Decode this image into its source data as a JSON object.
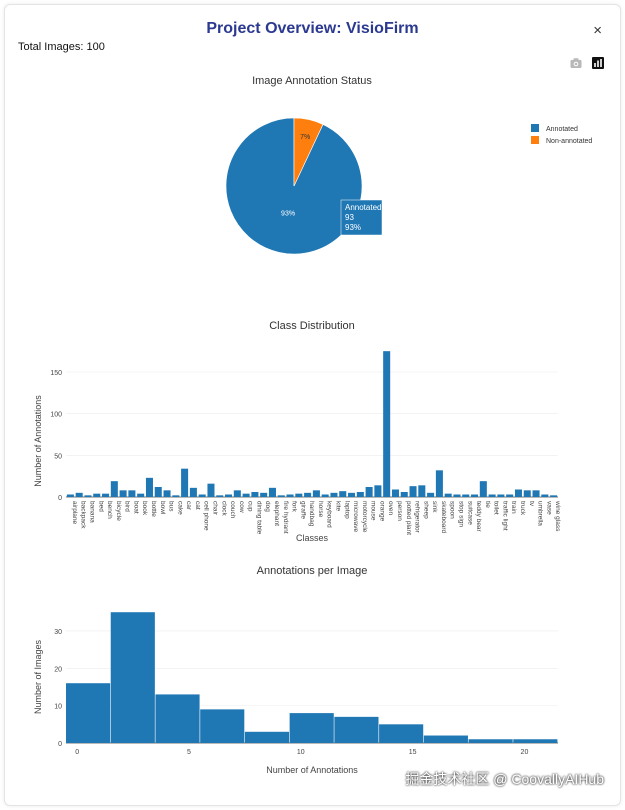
{
  "modal": {
    "title": "Project Overview: VisioFirm",
    "title_color": "#2b3990",
    "close_label": "×",
    "total_images": "Total Images: 100"
  },
  "toolbar": {
    "icons": [
      "camera-icon",
      "bar-chart-icon"
    ]
  },
  "watermark": "掘金技术社区 @ CoovallyAIHub",
  "chart_data": [
    {
      "type": "pie",
      "title": "Image Annotation Status",
      "labels": [
        "Annotated",
        "Non-annotated"
      ],
      "values": [
        93,
        7
      ],
      "percent_labels": [
        "93%",
        "7%"
      ],
      "colors": [
        "#1f77b4",
        "#ff7f0e"
      ],
      "legend_position": "top-right",
      "hover": {
        "label": "Annotated",
        "value": "93",
        "percent": "93%"
      }
    },
    {
      "type": "bar",
      "title": "Class Distribution",
      "xlabel": "Classes",
      "ylabel": "Number of Annotations",
      "ylim": [
        0,
        180
      ],
      "yticks": [
        0,
        50,
        100,
        150
      ],
      "color": "#1f77b4",
      "categories": [
        "airplane",
        "backpack",
        "banana",
        "bed",
        "bench",
        "bicycle",
        "bird",
        "boat",
        "book",
        "bottle",
        "bowl",
        "bus",
        "cake",
        "car",
        "cat",
        "cell phone",
        "chair",
        "clock",
        "couch",
        "cow",
        "cup",
        "dining table",
        "dog",
        "elephant",
        "fire hydrant",
        "fork",
        "giraffe",
        "handbag",
        "horse",
        "keyboard",
        "kite",
        "laptop",
        "microwave",
        "motorcycle",
        "mouse",
        "orange",
        "oven",
        "person",
        "potted plant",
        "refrigerator",
        "sheep",
        "sink",
        "skateboard",
        "spoon",
        "stop sign",
        "suitcase",
        "teddy bear",
        "tie",
        "toilet",
        "traffic light",
        "train",
        "truck",
        "tv",
        "umbrella",
        "vase",
        "wine glass"
      ],
      "values": [
        3,
        5,
        2,
        4,
        4,
        19,
        8,
        8,
        4,
        23,
        12,
        8,
        2,
        34,
        11,
        3,
        16,
        2,
        3,
        8,
        4,
        6,
        5,
        11,
        2,
        3,
        4,
        5,
        8,
        3,
        5,
        7,
        5,
        6,
        12,
        14,
        175,
        9,
        6,
        13,
        14,
        5,
        32,
        4,
        3,
        3,
        3,
        19,
        3,
        3,
        3,
        9,
        8,
        8,
        3,
        2
      ]
    },
    {
      "type": "histogram",
      "title": "Annotations per Image",
      "xlabel": "Number of Annotations",
      "ylabel": "Number of Images",
      "xlim": [
        -0.5,
        21.5
      ],
      "ylim": [
        0,
        38
      ],
      "xticks": [
        0,
        5,
        10,
        15,
        20
      ],
      "yticks": [
        0,
        10,
        20,
        30
      ],
      "color": "#1f77b4",
      "bins": [
        {
          "start": -0.5,
          "end": 1.5,
          "count": 16
        },
        {
          "start": 1.5,
          "end": 3.5,
          "count": 35
        },
        {
          "start": 3.5,
          "end": 5.5,
          "count": 13
        },
        {
          "start": 5.5,
          "end": 7.5,
          "count": 9
        },
        {
          "start": 7.5,
          "end": 9.5,
          "count": 3
        },
        {
          "start": 9.5,
          "end": 11.5,
          "count": 8
        },
        {
          "start": 11.5,
          "end": 13.5,
          "count": 7
        },
        {
          "start": 13.5,
          "end": 15.5,
          "count": 5
        },
        {
          "start": 15.5,
          "end": 17.5,
          "count": 2
        },
        {
          "start": 17.5,
          "end": 19.5,
          "count": 1
        },
        {
          "start": 19.5,
          "end": 21.5,
          "count": 1
        }
      ]
    }
  ]
}
